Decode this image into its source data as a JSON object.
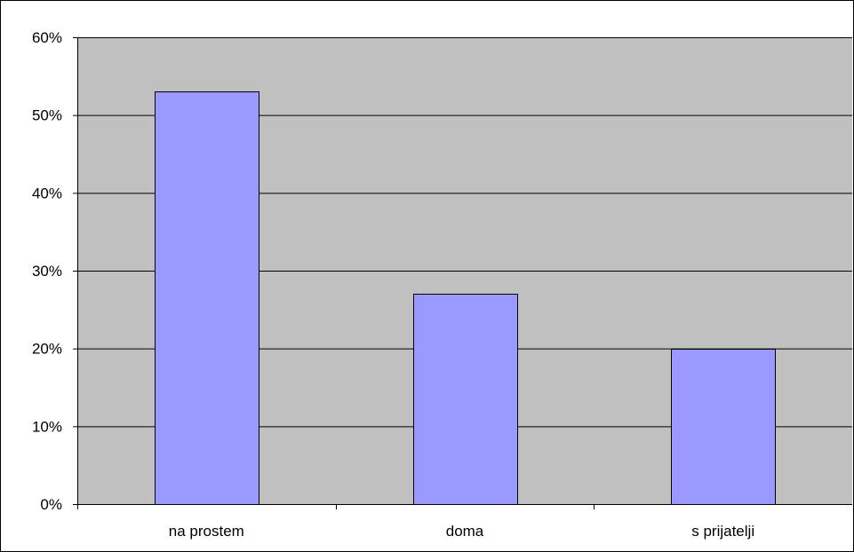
{
  "chart_data": {
    "type": "bar",
    "categories": [
      "na prostem",
      "doma",
      "s prijatelji"
    ],
    "values": [
      53,
      27,
      20
    ],
    "unit": "%",
    "ylim": [
      0,
      60
    ],
    "yticks": [
      0,
      10,
      20,
      30,
      40,
      50,
      60
    ],
    "ytick_labels": [
      "0%",
      "10%",
      "20%",
      "30%",
      "40%",
      "50%",
      "60%"
    ],
    "grid": true,
    "legend": "none",
    "colors": {
      "bar_fill": "#9999ff",
      "bar_stroke": "#000000",
      "plot_background": "#c0c0c0",
      "gridline": "#000000"
    }
  }
}
